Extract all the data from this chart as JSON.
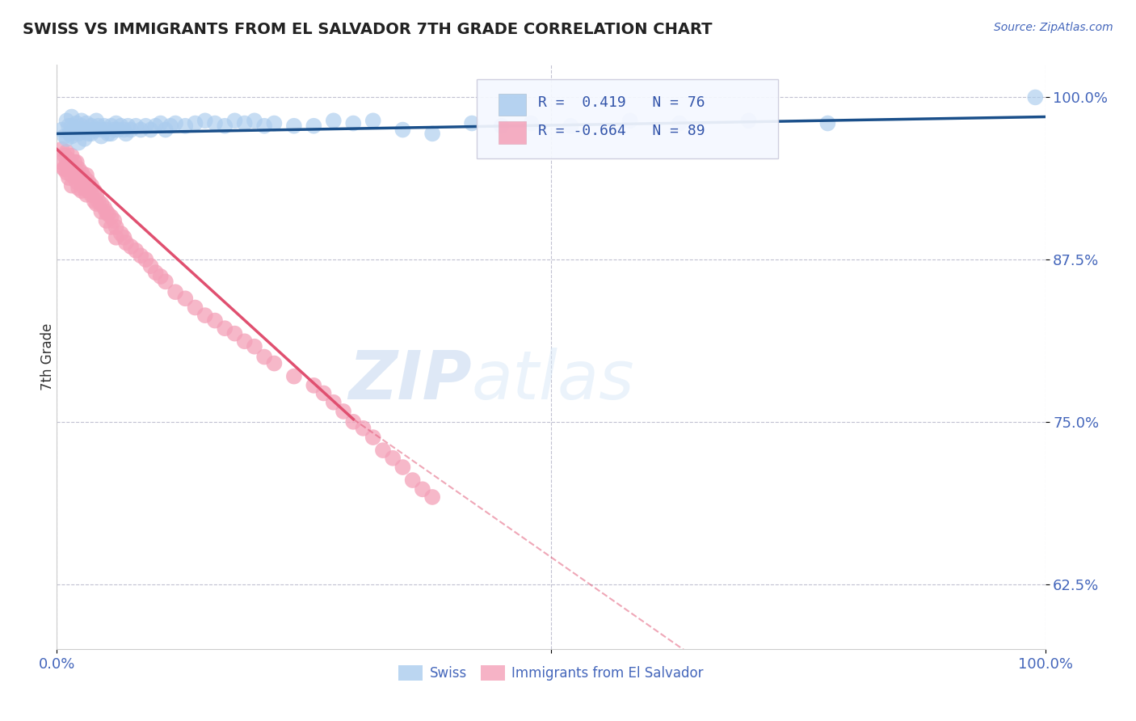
{
  "title": "SWISS VS IMMIGRANTS FROM EL SALVADOR 7TH GRADE CORRELATION CHART",
  "source": "Source: ZipAtlas.com",
  "ylabel": "7th Grade",
  "xlim": [
    0.0,
    1.0
  ],
  "ylim": [
    0.575,
    1.025
  ],
  "yticks": [
    0.625,
    0.75,
    0.875,
    1.0
  ],
  "ytick_labels": [
    "62.5%",
    "75.0%",
    "87.5%",
    "100.0%"
  ],
  "watermark_zip": "ZIP",
  "watermark_atlas": "atlas",
  "legend_r_blue": "R =  0.419",
  "legend_n_blue": "N = 76",
  "legend_r_pink": "R = -0.664",
  "legend_n_pink": "N = 89",
  "blue_dot_color": "#aaccee",
  "pink_dot_color": "#f4a0b8",
  "blue_line_color": "#1a4f8a",
  "pink_line_color": "#e05070",
  "background_color": "#ffffff",
  "grid_color": "#bbbbcc",
  "swiss_x": [
    0.005,
    0.008,
    0.01,
    0.01,
    0.012,
    0.013,
    0.015,
    0.015,
    0.015,
    0.018,
    0.02,
    0.022,
    0.022,
    0.025,
    0.025,
    0.025,
    0.028,
    0.03,
    0.03,
    0.032,
    0.035,
    0.035,
    0.038,
    0.04,
    0.04,
    0.042,
    0.045,
    0.045,
    0.048,
    0.05,
    0.052,
    0.055,
    0.055,
    0.058,
    0.06,
    0.062,
    0.065,
    0.068,
    0.07,
    0.072,
    0.075,
    0.08,
    0.085,
    0.09,
    0.095,
    0.1,
    0.105,
    0.11,
    0.115,
    0.12,
    0.13,
    0.14,
    0.15,
    0.16,
    0.17,
    0.18,
    0.19,
    0.2,
    0.21,
    0.22,
    0.24,
    0.26,
    0.28,
    0.3,
    0.32,
    0.35,
    0.38,
    0.42,
    0.45,
    0.48,
    0.52,
    0.58,
    0.63,
    0.7,
    0.78,
    0.99
  ],
  "swiss_y": [
    0.975,
    0.97,
    0.982,
    0.968,
    0.978,
    0.972,
    0.985,
    0.978,
    0.97,
    0.975,
    0.98,
    0.972,
    0.965,
    0.982,
    0.978,
    0.975,
    0.968,
    0.98,
    0.975,
    0.972,
    0.978,
    0.972,
    0.975,
    0.982,
    0.975,
    0.978,
    0.975,
    0.97,
    0.978,
    0.975,
    0.972,
    0.978,
    0.972,
    0.975,
    0.98,
    0.975,
    0.978,
    0.975,
    0.972,
    0.978,
    0.975,
    0.978,
    0.975,
    0.978,
    0.975,
    0.978,
    0.98,
    0.975,
    0.978,
    0.98,
    0.978,
    0.98,
    0.982,
    0.98,
    0.978,
    0.982,
    0.98,
    0.982,
    0.978,
    0.98,
    0.978,
    0.978,
    0.982,
    0.98,
    0.982,
    0.975,
    0.972,
    0.98,
    0.978,
    0.98,
    0.978,
    0.982,
    0.98,
    0.982,
    0.98,
    1.0
  ],
  "salvador_x": [
    0.005,
    0.005,
    0.007,
    0.008,
    0.008,
    0.01,
    0.01,
    0.01,
    0.012,
    0.012,
    0.012,
    0.013,
    0.015,
    0.015,
    0.015,
    0.015,
    0.017,
    0.018,
    0.018,
    0.02,
    0.02,
    0.02,
    0.022,
    0.022,
    0.022,
    0.025,
    0.025,
    0.025,
    0.028,
    0.028,
    0.03,
    0.03,
    0.03,
    0.032,
    0.032,
    0.035,
    0.035,
    0.038,
    0.038,
    0.04,
    0.04,
    0.042,
    0.045,
    0.045,
    0.048,
    0.05,
    0.05,
    0.052,
    0.055,
    0.055,
    0.058,
    0.06,
    0.06,
    0.065,
    0.068,
    0.07,
    0.075,
    0.08,
    0.085,
    0.09,
    0.095,
    0.1,
    0.105,
    0.11,
    0.12,
    0.13,
    0.14,
    0.15,
    0.16,
    0.17,
    0.18,
    0.19,
    0.2,
    0.21,
    0.22,
    0.24,
    0.26,
    0.27,
    0.28,
    0.29,
    0.3,
    0.31,
    0.32,
    0.33,
    0.34,
    0.35,
    0.36,
    0.37,
    0.38
  ],
  "salvador_y": [
    0.96,
    0.95,
    0.945,
    0.955,
    0.945,
    0.958,
    0.95,
    0.942,
    0.952,
    0.945,
    0.938,
    0.948,
    0.955,
    0.948,
    0.94,
    0.932,
    0.945,
    0.95,
    0.942,
    0.95,
    0.942,
    0.935,
    0.945,
    0.938,
    0.93,
    0.942,
    0.935,
    0.928,
    0.938,
    0.93,
    0.94,
    0.932,
    0.925,
    0.935,
    0.928,
    0.932,
    0.925,
    0.928,
    0.92,
    0.925,
    0.918,
    0.92,
    0.918,
    0.912,
    0.915,
    0.912,
    0.905,
    0.91,
    0.908,
    0.9,
    0.905,
    0.9,
    0.892,
    0.895,
    0.892,
    0.888,
    0.885,
    0.882,
    0.878,
    0.875,
    0.87,
    0.865,
    0.862,
    0.858,
    0.85,
    0.845,
    0.838,
    0.832,
    0.828,
    0.822,
    0.818,
    0.812,
    0.808,
    0.8,
    0.795,
    0.785,
    0.778,
    0.772,
    0.765,
    0.758,
    0.75,
    0.745,
    0.738,
    0.728,
    0.722,
    0.715,
    0.705,
    0.698,
    0.692
  ],
  "pink_line_x_start": 0.0,
  "pink_line_y_start": 0.96,
  "pink_line_x_solid_end": 0.3,
  "pink_line_y_solid_end": 0.752,
  "pink_line_x_dash_end": 1.0,
  "pink_line_y_dash_end": 0.38,
  "blue_line_x_start": 0.0,
  "blue_line_y_start": 0.972,
  "blue_line_x_end": 1.0,
  "blue_line_y_end": 0.985
}
